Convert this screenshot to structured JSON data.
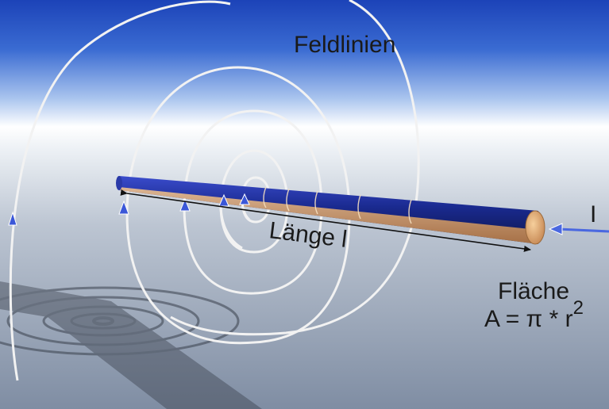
{
  "labels": {
    "field_lines": "Feldlinien",
    "length": "Länge l",
    "current": "I",
    "area": "Fläche",
    "formula_base": "A = π * r",
    "formula_exp": "2"
  },
  "colors": {
    "sky_top": "#1c43b8",
    "sky_horizon": "#ffffff",
    "ground": "#8f9cb0",
    "rod_blue": "#1a2a80",
    "rod_copper": "#d8a06a",
    "field_line": "#f2f2f2",
    "arrow": "#3b57d8",
    "shadow": "#39404c"
  }
}
